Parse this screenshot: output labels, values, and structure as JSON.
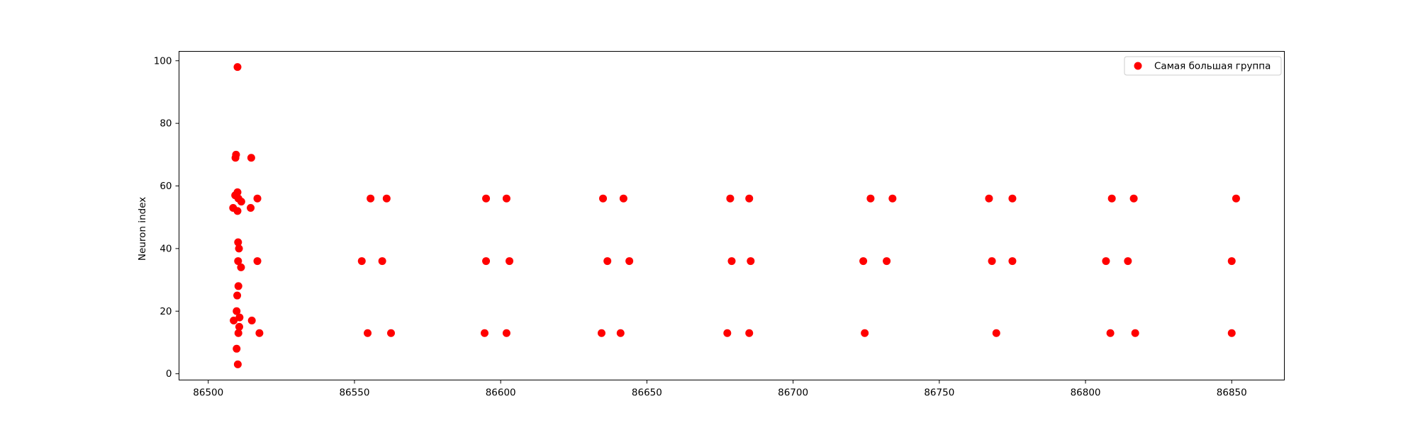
{
  "chart_data": {
    "type": "scatter",
    "title": "",
    "xlabel": "",
    "ylabel": "Neuron index",
    "xlim": [
      86490,
      86868
    ],
    "ylim": [
      -2,
      103
    ],
    "xticks": [
      86500,
      86550,
      86600,
      86650,
      86700,
      86750,
      86800,
      86850
    ],
    "yticks": [
      0,
      20,
      40,
      60,
      80,
      100
    ],
    "grid": false,
    "legend_position": "top-right",
    "series": [
      {
        "name": "Самая большая группа",
        "color": "#ff0000",
        "points": [
          [
            86510,
            98
          ],
          [
            86509.5,
            70
          ],
          [
            86509.3,
            69
          ],
          [
            86514.7,
            69
          ],
          [
            86510,
            58
          ],
          [
            86509.2,
            57
          ],
          [
            86510.3,
            56
          ],
          [
            86516.8,
            56
          ],
          [
            86511.3,
            55
          ],
          [
            86508.5,
            53
          ],
          [
            86514.5,
            53
          ],
          [
            86510,
            52
          ],
          [
            86510.2,
            42
          ],
          [
            86510.5,
            40
          ],
          [
            86510.2,
            36
          ],
          [
            86516.8,
            36
          ],
          [
            86511.2,
            34
          ],
          [
            86510.3,
            28
          ],
          [
            86509.9,
            25
          ],
          [
            86509.7,
            20
          ],
          [
            86510.7,
            18
          ],
          [
            86508.7,
            17
          ],
          [
            86514.9,
            17
          ],
          [
            86510.6,
            15
          ],
          [
            86510.3,
            13
          ],
          [
            86517.5,
            13
          ],
          [
            86509.7,
            8
          ],
          [
            86510.1,
            3
          ],
          [
            86555.5,
            56
          ],
          [
            86561,
            56
          ],
          [
            86552.5,
            36
          ],
          [
            86559.5,
            36
          ],
          [
            86554.5,
            13
          ],
          [
            86562.5,
            13
          ],
          [
            86595,
            56
          ],
          [
            86602,
            56
          ],
          [
            86595,
            36
          ],
          [
            86603,
            36
          ],
          [
            86594.5,
            13
          ],
          [
            86602,
            13
          ],
          [
            86635,
            56
          ],
          [
            86642,
            56
          ],
          [
            86636.5,
            36
          ],
          [
            86644,
            36
          ],
          [
            86634.5,
            13
          ],
          [
            86641,
            13
          ],
          [
            86678.5,
            56
          ],
          [
            86685,
            56
          ],
          [
            86679,
            36
          ],
          [
            86685.5,
            36
          ],
          [
            86677.5,
            13
          ],
          [
            86685,
            13
          ],
          [
            86726.5,
            56
          ],
          [
            86734,
            56
          ],
          [
            86724,
            36
          ],
          [
            86732,
            36
          ],
          [
            86724.5,
            13
          ],
          [
            86767,
            56
          ],
          [
            86775,
            56
          ],
          [
            86768,
            36
          ],
          [
            86775,
            36
          ],
          [
            86769.5,
            13
          ],
          [
            86809,
            56
          ],
          [
            86816.5,
            56
          ],
          [
            86807,
            36
          ],
          [
            86814.5,
            36
          ],
          [
            86808.5,
            13
          ],
          [
            86817,
            13
          ],
          [
            86851.5,
            56
          ],
          [
            86850,
            36
          ],
          [
            86850,
            13
          ]
        ]
      }
    ]
  }
}
